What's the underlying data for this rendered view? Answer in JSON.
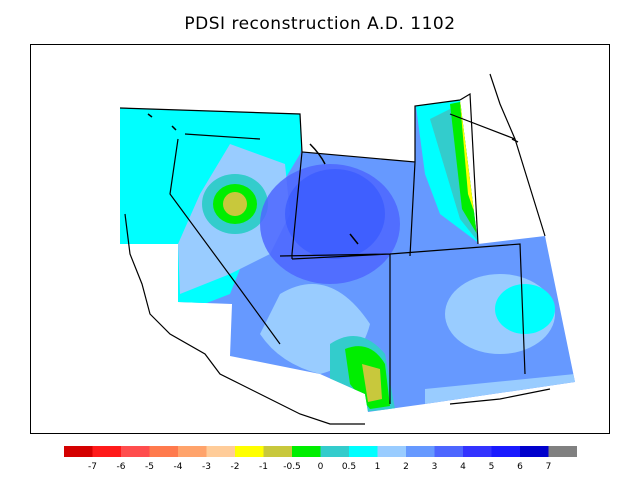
{
  "title": "PDSI reconstruction A.D. 1102",
  "legend": {
    "colors": [
      "#d40000",
      "#ff1a1a",
      "#ff4d4d",
      "#ff7a4d",
      "#ffa36b",
      "#ffcc99",
      "#ffff00",
      "#c8c83c",
      "#00ee00",
      "#33cccc",
      "#00ffff",
      "#99ccff",
      "#6699ff",
      "#4d66ff",
      "#3333ff",
      "#1a1aff",
      "#0000cc",
      "#808080"
    ],
    "labels": [
      "-7",
      "-6",
      "-5",
      "-4",
      "-3",
      "-2",
      "-1",
      "-0.5",
      "0",
      "0.5",
      "1",
      "2",
      "3",
      "4",
      "5",
      "6",
      "7"
    ]
  }
}
